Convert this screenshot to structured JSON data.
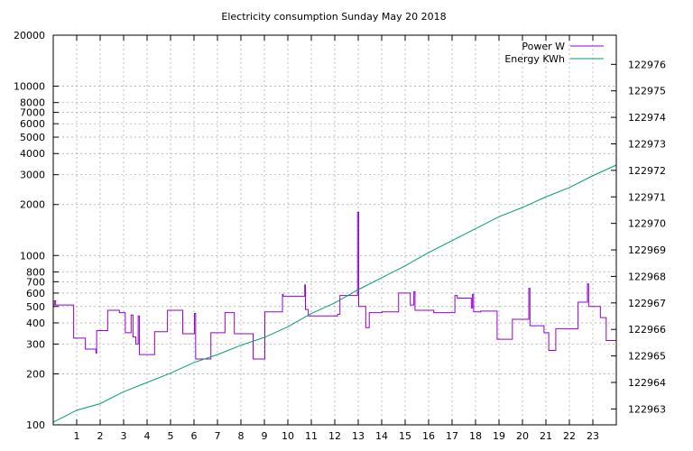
{
  "chart_data": {
    "type": "line",
    "title": "Electricity consumption Sunday May 20 2018",
    "xlabel": "",
    "ylabel": "",
    "x_range": [
      0,
      24
    ],
    "x_ticks": [
      1,
      2,
      3,
      4,
      5,
      6,
      7,
      8,
      9,
      10,
      11,
      12,
      13,
      14,
      15,
      16,
      17,
      18,
      19,
      20,
      21,
      22,
      23
    ],
    "y_scale": "log",
    "y_range": [
      100,
      20000
    ],
    "y_ticks": [
      {
        "value": 100,
        "label": "100"
      },
      {
        "value": 200,
        "label": "200"
      },
      {
        "value": 300,
        "label": "300"
      },
      {
        "value": 400,
        "label": "400"
      },
      {
        "value": 500,
        "label": "500"
      },
      {
        "value": 600,
        "label": "600"
      },
      {
        "value": 700,
        "label": "700"
      },
      {
        "value": 800,
        "label": "800"
      },
      {
        "value": 1000,
        "label": "1000"
      },
      {
        "value": 2000,
        "label": "2000"
      },
      {
        "value": 3000,
        "label": "3000"
      },
      {
        "value": 4000,
        "label": "4000"
      },
      {
        "value": 5000,
        "label": "5000"
      },
      {
        "value": 6000,
        "label": "6000"
      },
      {
        "value": 7000,
        "label": "7000"
      },
      {
        "value": 8000,
        "label": "8000"
      },
      {
        "value": 10000,
        "label": "10000"
      },
      {
        "value": 20000,
        "label": "20000"
      }
    ],
    "y2_range": [
      122962.4,
      122977.1
    ],
    "y2_ticks": [
      122963,
      122964,
      122965,
      122966,
      122967,
      122968,
      122969,
      122970,
      122971,
      122972,
      122973,
      122974,
      122975,
      122976
    ],
    "grid": true,
    "legend_position": "top-right",
    "series": [
      {
        "name": "Power W",
        "color": "#9400d3",
        "axis": "y",
        "step": true,
        "points": [
          [
            0,
            510
          ],
          [
            0.05,
            540
          ],
          [
            0.1,
            510
          ],
          [
            0.85,
            510
          ],
          [
            0.87,
            325
          ],
          [
            1.35,
            325
          ],
          [
            1.37,
            280
          ],
          [
            1.8,
            280
          ],
          [
            1.82,
            265
          ],
          [
            1.85,
            360
          ],
          [
            2.3,
            360
          ],
          [
            2.32,
            475
          ],
          [
            2.8,
            475
          ],
          [
            2.82,
            460
          ],
          [
            3.05,
            460
          ],
          [
            3.07,
            350
          ],
          [
            3.3,
            350
          ],
          [
            3.32,
            445
          ],
          [
            3.38,
            445
          ],
          [
            3.4,
            330
          ],
          [
            3.5,
            330
          ],
          [
            3.52,
            300
          ],
          [
            3.6,
            300
          ],
          [
            3.62,
            440
          ],
          [
            3.65,
            440
          ],
          [
            3.67,
            260
          ],
          [
            4.3,
            260
          ],
          [
            4.32,
            355
          ],
          [
            4.85,
            355
          ],
          [
            4.87,
            475
          ],
          [
            5.5,
            475
          ],
          [
            5.52,
            345
          ],
          [
            6.0,
            345
          ],
          [
            6.02,
            455
          ],
          [
            6.05,
            455
          ],
          [
            6.07,
            245
          ],
          [
            6.7,
            245
          ],
          [
            6.72,
            350
          ],
          [
            7.3,
            350
          ],
          [
            7.32,
            460
          ],
          [
            7.7,
            460
          ],
          [
            7.72,
            345
          ],
          [
            8.5,
            345
          ],
          [
            8.52,
            245
          ],
          [
            9.0,
            245
          ],
          [
            9.02,
            465
          ],
          [
            9.75,
            465
          ],
          [
            9.77,
            590
          ],
          [
            9.8,
            575
          ],
          [
            10.7,
            575
          ],
          [
            10.72,
            670
          ],
          [
            10.75,
            480
          ],
          [
            10.85,
            480
          ],
          [
            10.87,
            440
          ],
          [
            12.1,
            440
          ],
          [
            12.12,
            450
          ],
          [
            12.2,
            450
          ],
          [
            12.22,
            580
          ],
          [
            12.95,
            580
          ],
          [
            12.97,
            1800
          ],
          [
            13.0,
            1800
          ],
          [
            13.02,
            500
          ],
          [
            13.3,
            500
          ],
          [
            13.32,
            375
          ],
          [
            13.45,
            375
          ],
          [
            13.47,
            460
          ],
          [
            14.0,
            460
          ],
          [
            14.02,
            465
          ],
          [
            14.7,
            465
          ],
          [
            14.72,
            600
          ],
          [
            15.2,
            600
          ],
          [
            15.22,
            510
          ],
          [
            15.35,
            510
          ],
          [
            15.37,
            610
          ],
          [
            15.4,
            610
          ],
          [
            15.42,
            475
          ],
          [
            16.2,
            475
          ],
          [
            16.22,
            460
          ],
          [
            17.1,
            460
          ],
          [
            17.12,
            580
          ],
          [
            17.2,
            580
          ],
          [
            17.22,
            560
          ],
          [
            17.8,
            560
          ],
          [
            17.82,
            490
          ],
          [
            17.85,
            490
          ],
          [
            17.87,
            590
          ],
          [
            17.9,
            590
          ],
          [
            17.92,
            465
          ],
          [
            18.2,
            465
          ],
          [
            18.22,
            470
          ],
          [
            18.9,
            470
          ],
          [
            18.92,
            320
          ],
          [
            19.55,
            320
          ],
          [
            19.57,
            420
          ],
          [
            20.25,
            420
          ],
          [
            20.27,
            640
          ],
          [
            20.3,
            640
          ],
          [
            20.32,
            385
          ],
          [
            20.9,
            385
          ],
          [
            20.92,
            350
          ],
          [
            21.1,
            350
          ],
          [
            21.12,
            275
          ],
          [
            21.4,
            275
          ],
          [
            21.42,
            370
          ],
          [
            22.35,
            370
          ],
          [
            22.37,
            530
          ],
          [
            22.75,
            530
          ],
          [
            22.77,
            680
          ],
          [
            22.8,
            680
          ],
          [
            22.82,
            500
          ],
          [
            23.3,
            500
          ],
          [
            23.32,
            430
          ],
          [
            23.55,
            430
          ],
          [
            23.57,
            315
          ],
          [
            24,
            315
          ]
        ]
      },
      {
        "name": "Energy KWh",
        "color": "#009e73",
        "axis": "y2",
        "step": false,
        "points": [
          [
            0,
            122962.5
          ],
          [
            1,
            122962.95
          ],
          [
            2,
            122963.2
          ],
          [
            3,
            122963.65
          ],
          [
            4,
            122964.0
          ],
          [
            5,
            122964.35
          ],
          [
            6,
            122964.75
          ],
          [
            7,
            122965.05
          ],
          [
            8,
            122965.4
          ],
          [
            9,
            122965.7
          ],
          [
            10,
            122966.1
          ],
          [
            11,
            122966.6
          ],
          [
            12,
            122967.0
          ],
          [
            13,
            122967.5
          ],
          [
            14,
            122967.95
          ],
          [
            15,
            122968.4
          ],
          [
            16,
            122968.9
          ],
          [
            17,
            122969.35
          ],
          [
            18,
            122969.8
          ],
          [
            19,
            122970.25
          ],
          [
            20,
            122970.6
          ],
          [
            21,
            122971.0
          ],
          [
            22,
            122971.35
          ],
          [
            23,
            122971.8
          ],
          [
            24,
            122972.2
          ]
        ]
      }
    ]
  }
}
